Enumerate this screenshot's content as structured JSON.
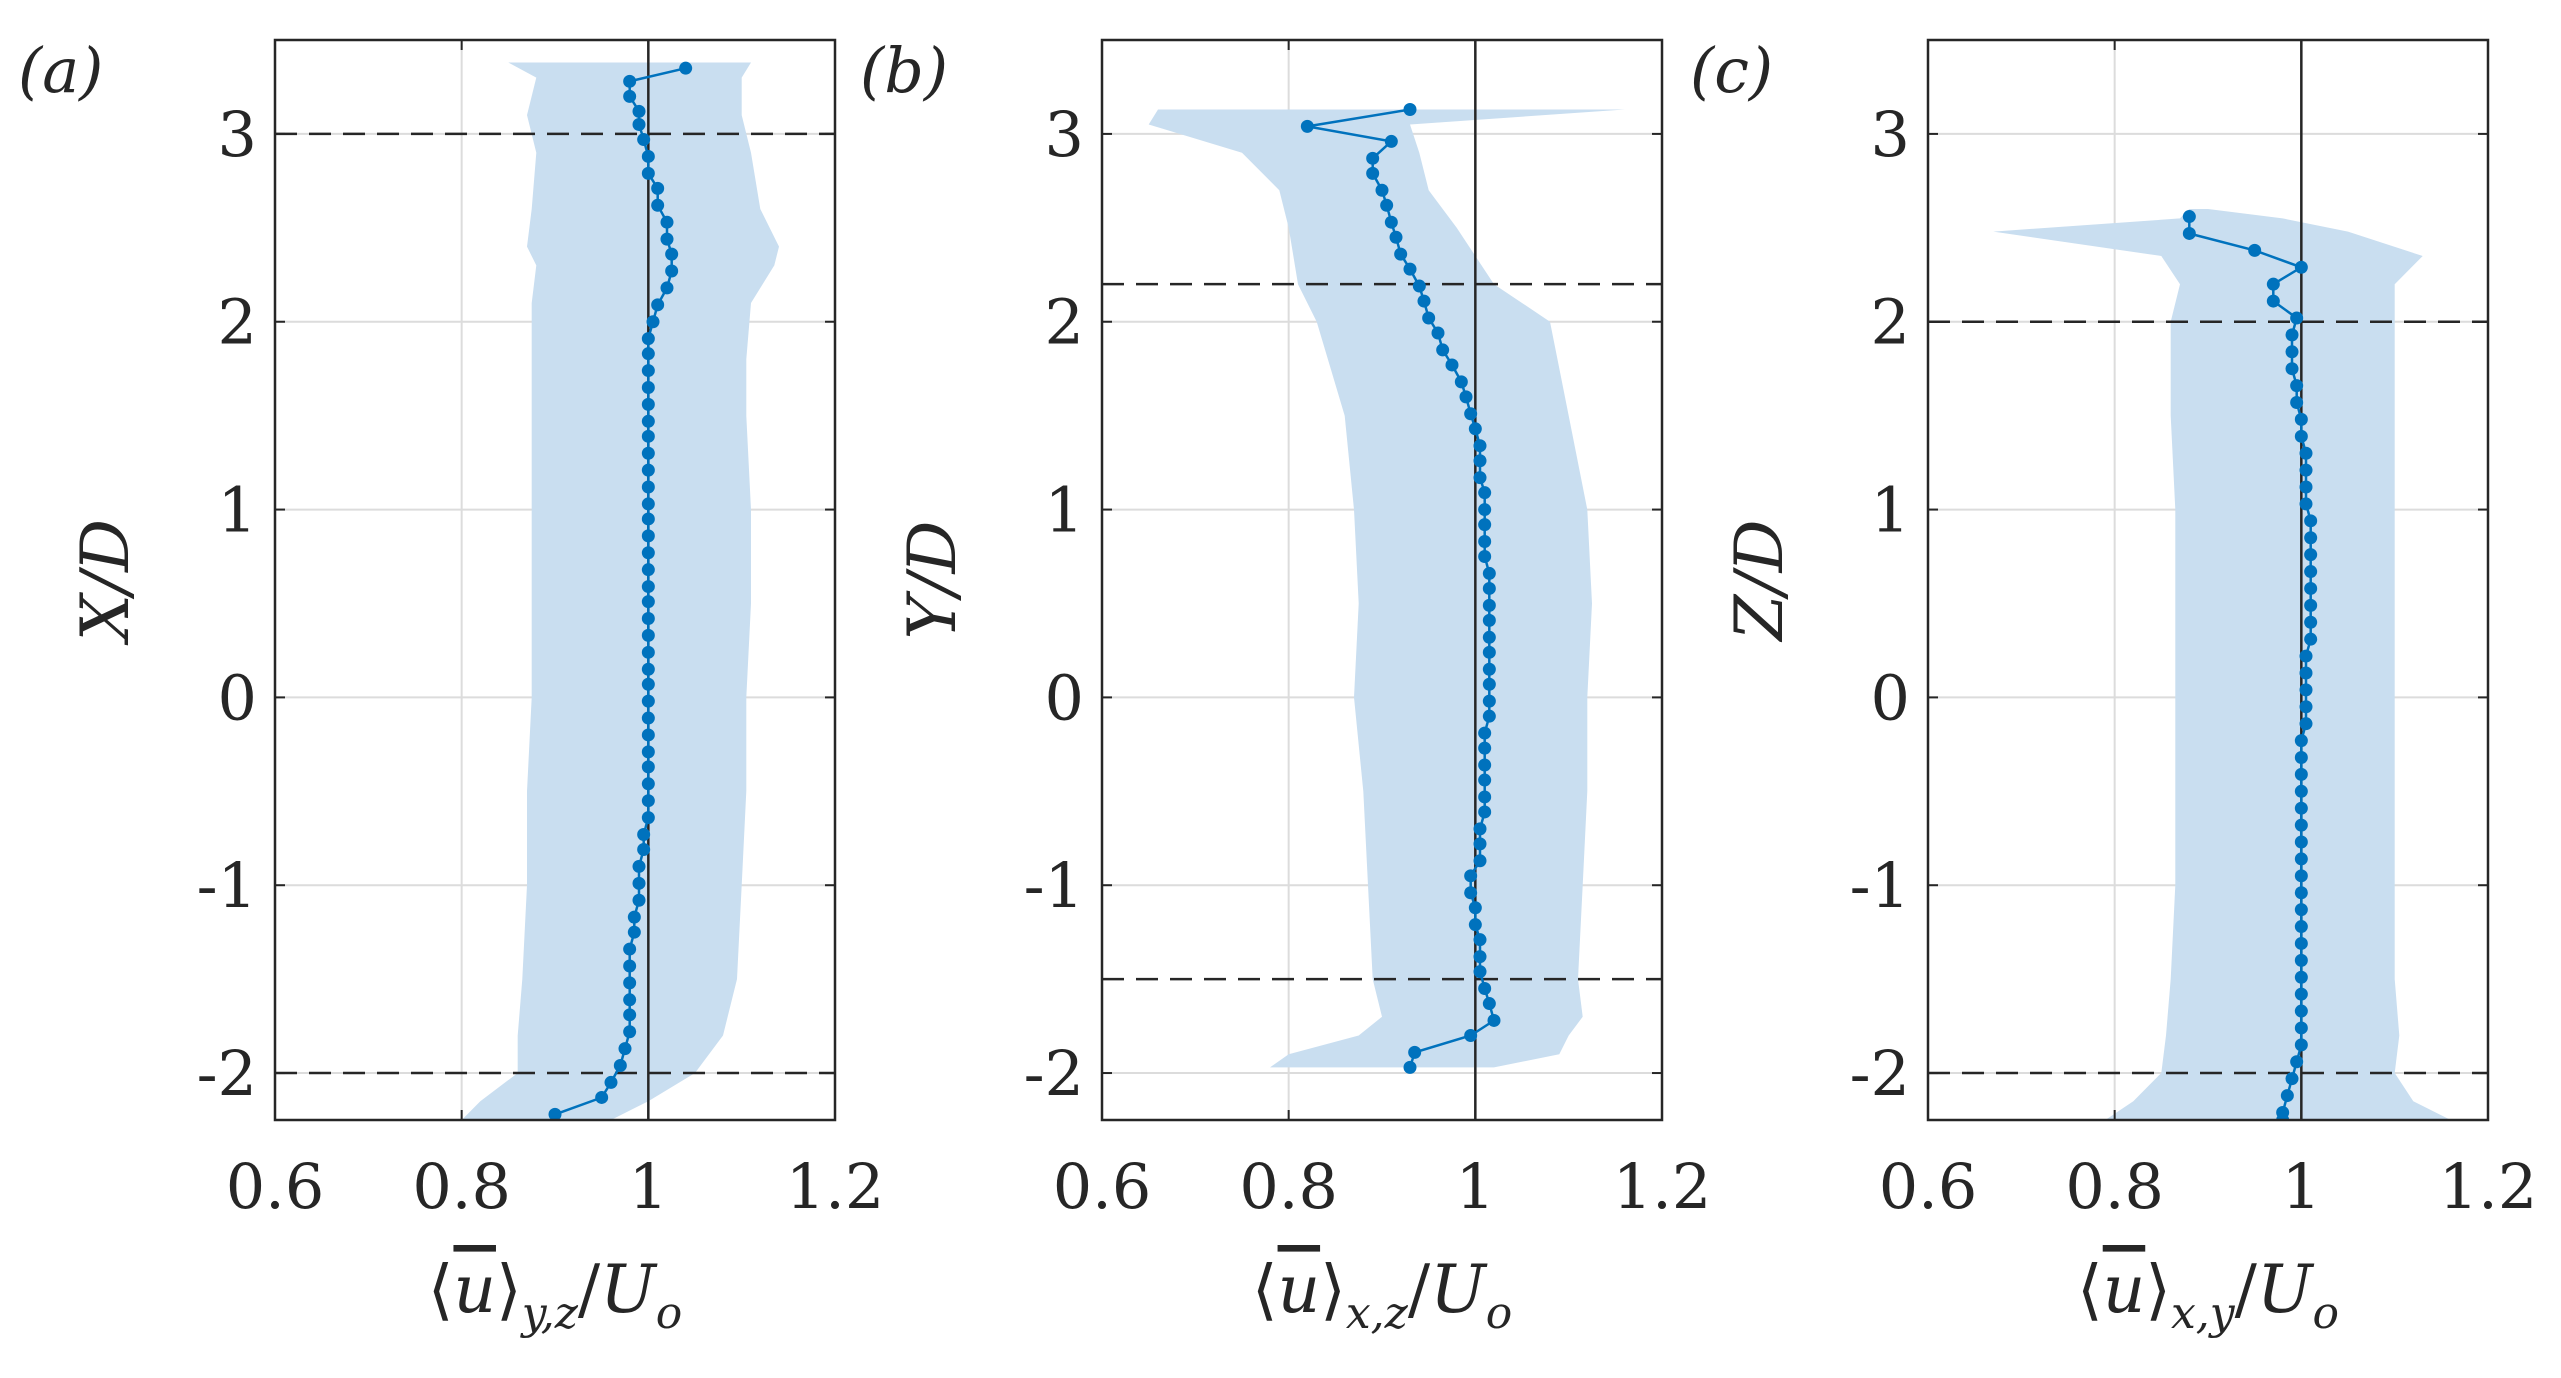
{
  "chart_data": [
    {
      "type": "line",
      "panel_label": "(a)",
      "ylabel": "X/D",
      "xlabel": "⟨u̅⟩y,z/Uo",
      "xlabel_parts": {
        "open": "⟨",
        "var": "u",
        "close": "⟩",
        "sub": "y,z",
        "slash": "/",
        "U": "U",
        "o": "o"
      },
      "xlim": [
        0.6,
        1.2
      ],
      "ylim": [
        -2.25,
        3.5
      ],
      "xticks": [
        0.6,
        0.8,
        1,
        1.2
      ],
      "xtick_labels": [
        "0.6",
        "0.8",
        "1",
        "1.2"
      ],
      "yticks": [
        -2,
        -1,
        0,
        1,
        2,
        3
      ],
      "ytick_labels": [
        "-2",
        "-1",
        "0",
        "1",
        "2",
        "3"
      ],
      "grid": true,
      "reference_x": 1,
      "dashed_y": [
        3,
        -2
      ],
      "series": [
        {
          "name": "mean",
          "y": [
            3.35,
            3.28,
            3.2,
            3.12,
            3.05,
            2.97,
            2.88,
            2.79,
            2.71,
            2.62,
            2.53,
            2.44,
            2.36,
            2.27,
            2.18,
            2.09,
            2.0,
            1.91,
            1.83,
            1.74,
            1.65,
            1.56,
            1.47,
            1.39,
            1.3,
            1.21,
            1.12,
            1.03,
            0.95,
            0.86,
            0.77,
            0.68,
            0.59,
            0.51,
            0.42,
            0.33,
            0.24,
            0.15,
            0.07,
            -0.02,
            -0.11,
            -0.2,
            -0.29,
            -0.37,
            -0.46,
            -0.55,
            -0.64,
            -0.73,
            -0.81,
            -0.9,
            -0.99,
            -1.08,
            -1.17,
            -1.25,
            -1.34,
            -1.43,
            -1.52,
            -1.61,
            -1.69,
            -1.78,
            -1.87,
            -1.96,
            -2.05,
            -2.13,
            -2.22
          ],
          "x": [
            1.04,
            0.98,
            0.98,
            0.99,
            0.99,
            0.995,
            1.0,
            1.0,
            1.01,
            1.01,
            1.02,
            1.02,
            1.025,
            1.025,
            1.02,
            1.01,
            1.005,
            1.0,
            1.0,
            1.0,
            1.0,
            1.0,
            1.0,
            1.0,
            1.0,
            1.0,
            1.0,
            1.0,
            1.0,
            1.0,
            1.0,
            1.0,
            1.0,
            1.0,
            1.0,
            1.0,
            1.0,
            1.0,
            1.0,
            1.0,
            1.0,
            1.0,
            1.0,
            1.0,
            1.0,
            1.0,
            1.0,
            0.995,
            0.995,
            0.99,
            0.99,
            0.99,
            0.985,
            0.985,
            0.98,
            0.98,
            0.98,
            0.98,
            0.98,
            0.98,
            0.975,
            0.97,
            0.96,
            0.95,
            0.9
          ]
        }
      ],
      "band": {
        "y": [
          3.38,
          3.3,
          3.1,
          2.9,
          2.6,
          2.4,
          2.3,
          2.1,
          1.8,
          1.5,
          1.0,
          0.5,
          0.0,
          -0.5,
          -1.0,
          -1.5,
          -1.8,
          -2.0,
          -2.15,
          -2.25
        ],
        "lower": [
          0.85,
          0.88,
          0.87,
          0.88,
          0.875,
          0.87,
          0.88,
          0.875,
          0.875,
          0.875,
          0.875,
          0.875,
          0.875,
          0.87,
          0.87,
          0.865,
          0.86,
          0.86,
          0.82,
          0.8
        ],
        "upper": [
          1.11,
          1.1,
          1.1,
          1.11,
          1.12,
          1.14,
          1.135,
          1.11,
          1.105,
          1.105,
          1.11,
          1.11,
          1.105,
          1.105,
          1.1,
          1.095,
          1.08,
          1.05,
          1.0,
          0.96
        ]
      }
    },
    {
      "type": "line",
      "panel_label": "(b)",
      "ylabel": "Y/D",
      "xlabel": "⟨u̅⟩x,z/Uo",
      "xlabel_parts": {
        "open": "⟨",
        "var": "u",
        "close": "⟩",
        "sub": "x,z",
        "slash": "/",
        "U": "U",
        "o": "o"
      },
      "xlim": [
        0.6,
        1.2
      ],
      "ylim": [
        -2.25,
        3.5
      ],
      "xticks": [
        0.6,
        0.8,
        1,
        1.2
      ],
      "xtick_labels": [
        "0.6",
        "0.8",
        "1",
        "1.2"
      ],
      "yticks": [
        -2,
        -1,
        0,
        1,
        2,
        3
      ],
      "ytick_labels": [
        "-2",
        "-1",
        "0",
        "1",
        "2",
        "3"
      ],
      "grid": true,
      "reference_x": 1,
      "dashed_y": [
        2.2,
        -1.5
      ],
      "series": [
        {
          "name": "mean",
          "y": [
            3.13,
            3.04,
            2.96,
            2.87,
            2.79,
            2.7,
            2.62,
            2.53,
            2.45,
            2.36,
            2.28,
            2.19,
            2.11,
            2.02,
            1.94,
            1.85,
            1.77,
            1.68,
            1.6,
            1.51,
            1.43,
            1.34,
            1.26,
            1.17,
            1.09,
            1.0,
            0.92,
            0.83,
            0.75,
            0.66,
            0.58,
            0.49,
            0.41,
            0.32,
            0.24,
            0.15,
            0.07,
            -0.02,
            -0.1,
            -0.19,
            -0.27,
            -0.36,
            -0.44,
            -0.53,
            -0.61,
            -0.7,
            -0.78,
            -0.87,
            -0.95,
            -1.04,
            -1.12,
            -1.21,
            -1.29,
            -1.38,
            -1.46,
            -1.55,
            -1.63,
            -1.72,
            -1.8,
            -1.89,
            -1.97
          ],
          "x": [
            0.93,
            0.82,
            0.91,
            0.89,
            0.89,
            0.9,
            0.905,
            0.91,
            0.915,
            0.92,
            0.93,
            0.94,
            0.945,
            0.95,
            0.96,
            0.965,
            0.975,
            0.985,
            0.99,
            0.995,
            1.0,
            1.005,
            1.005,
            1.005,
            1.01,
            1.01,
            1.01,
            1.01,
            1.01,
            1.015,
            1.015,
            1.015,
            1.015,
            1.015,
            1.015,
            1.015,
            1.015,
            1.015,
            1.015,
            1.01,
            1.01,
            1.01,
            1.01,
            1.01,
            1.01,
            1.005,
            1.005,
            1.005,
            0.995,
            0.995,
            1.0,
            1.0,
            1.005,
            1.005,
            1.005,
            1.01,
            1.015,
            1.02,
            0.995,
            0.935,
            0.93
          ]
        }
      ],
      "band": {
        "y": [
          3.13,
          3.05,
          2.9,
          2.7,
          2.5,
          2.2,
          2.0,
          1.5,
          1.0,
          0.5,
          0.0,
          -0.5,
          -1.0,
          -1.5,
          -1.7,
          -1.8,
          -1.9,
          -1.97
        ],
        "lower": [
          0.66,
          0.65,
          0.75,
          0.79,
          0.8,
          0.81,
          0.83,
          0.86,
          0.87,
          0.875,
          0.87,
          0.88,
          0.885,
          0.89,
          0.9,
          0.875,
          0.8,
          0.78
        ],
        "upper": [
          1.16,
          0.93,
          0.94,
          0.95,
          0.98,
          1.02,
          1.08,
          1.1,
          1.12,
          1.125,
          1.12,
          1.12,
          1.115,
          1.11,
          1.115,
          1.1,
          1.09,
          1.02
        ]
      }
    },
    {
      "type": "line",
      "panel_label": "(c)",
      "ylabel": "Z/D",
      "xlabel": "⟨u̅⟩x,y/Uo",
      "xlabel_parts": {
        "open": "⟨",
        "var": "u",
        "close": "⟩",
        "sub": "x,y",
        "slash": "/",
        "U": "U",
        "o": "o"
      },
      "xlim": [
        0.6,
        1.2
      ],
      "ylim": [
        -2.25,
        3.5
      ],
      "xticks": [
        0.6,
        0.8,
        1,
        1.2
      ],
      "xtick_labels": [
        "0.6",
        "0.8",
        "1",
        "1.2"
      ],
      "yticks": [
        -2,
        -1,
        0,
        1,
        2,
        3
      ],
      "ytick_labels": [
        "-2",
        "-1",
        "0",
        "1",
        "2",
        "3"
      ],
      "grid": true,
      "reference_x": 1,
      "dashed_y": [
        2,
        -2
      ],
      "series": [
        {
          "name": "mean",
          "y": [
            2.56,
            2.47,
            2.38,
            2.29,
            2.2,
            2.11,
            2.02,
            1.93,
            1.84,
            1.75,
            1.66,
            1.57,
            1.48,
            1.39,
            1.3,
            1.21,
            1.12,
            1.03,
            0.94,
            0.85,
            0.76,
            0.67,
            0.58,
            0.49,
            0.4,
            0.31,
            0.22,
            0.13,
            0.04,
            -0.05,
            -0.14,
            -0.23,
            -0.32,
            -0.41,
            -0.5,
            -0.59,
            -0.68,
            -0.77,
            -0.86,
            -0.95,
            -1.04,
            -1.13,
            -1.22,
            -1.31,
            -1.4,
            -1.49,
            -1.58,
            -1.67,
            -1.76,
            -1.85,
            -1.94,
            -2.03,
            -2.12,
            -2.21,
            -2.25
          ],
          "x": [
            0.88,
            0.88,
            0.95,
            1.0,
            0.97,
            0.97,
            0.995,
            0.99,
            0.99,
            0.99,
            0.995,
            0.995,
            1.0,
            1.0,
            1.005,
            1.005,
            1.005,
            1.005,
            1.01,
            1.01,
            1.01,
            1.01,
            1.01,
            1.01,
            1.01,
            1.01,
            1.005,
            1.005,
            1.005,
            1.005,
            1.005,
            1.0,
            1.0,
            1.0,
            1.0,
            1.0,
            1.0,
            1.0,
            1.0,
            1.0,
            1.0,
            1.0,
            1.0,
            1.0,
            1.0,
            1.0,
            1.0,
            1.0,
            1.0,
            1.0,
            0.995,
            0.99,
            0.985,
            0.98,
            0.98
          ]
        }
      ],
      "band": {
        "y": [
          2.6,
          2.55,
          2.48,
          2.35,
          2.2,
          2.0,
          1.8,
          1.5,
          1.0,
          0.5,
          0.0,
          -0.5,
          -1.0,
          -1.5,
          -1.8,
          -2.0,
          -2.15,
          -2.25
        ],
        "lower": [
          0.88,
          0.87,
          0.67,
          0.85,
          0.87,
          0.86,
          0.86,
          0.86,
          0.865,
          0.865,
          0.865,
          0.865,
          0.865,
          0.86,
          0.855,
          0.85,
          0.82,
          0.79
        ],
        "upper": [
          0.9,
          0.98,
          1.05,
          1.13,
          1.1,
          1.1,
          1.1,
          1.1,
          1.1,
          1.1,
          1.1,
          1.1,
          1.1,
          1.1,
          1.105,
          1.1,
          1.12,
          1.16
        ]
      }
    }
  ],
  "colors": {
    "line": "#0072BD",
    "band": "#C9DEF0",
    "grid": "#DCDCDC",
    "axis": "#262626",
    "dash": "#262626"
  }
}
